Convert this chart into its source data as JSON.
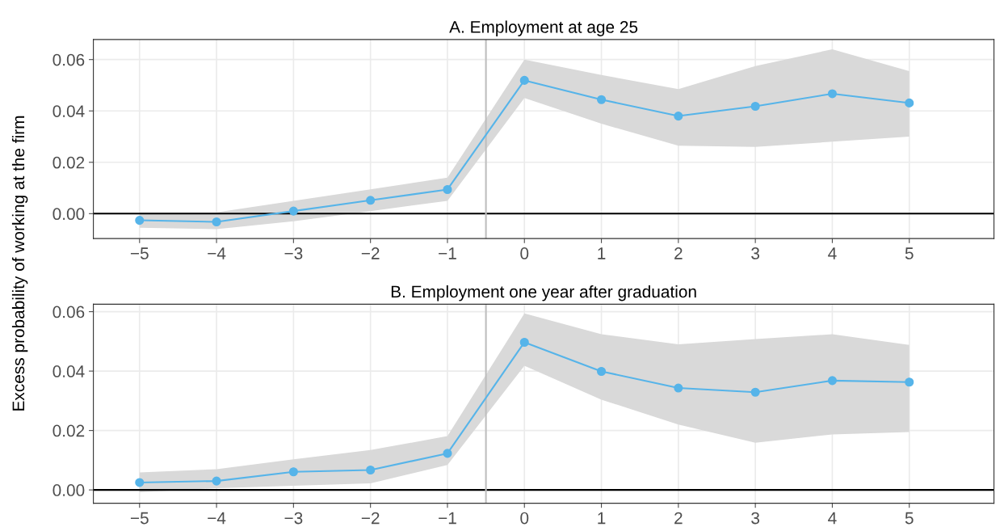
{
  "chart_data": [
    {
      "type": "line",
      "title": "A. Employment at age 25",
      "ylabel": "Excess probability of working at the firm",
      "x": [
        -5,
        -4,
        -3,
        -2,
        -1,
        0,
        1,
        2,
        3,
        4,
        5
      ],
      "series": [
        {
          "color": "#56b4e9",
          "values": [
            -0.0026,
            -0.0032,
            0.001,
            0.0052,
            0.0094,
            0.0519,
            0.0444,
            0.038,
            0.0418,
            0.0467,
            0.0431
          ],
          "lower": [
            -0.0055,
            -0.006,
            -0.003,
            0.001,
            0.005,
            0.045,
            0.035,
            0.0265,
            0.026,
            0.028,
            0.03
          ],
          "upper": [
            0.0005,
            0.0005,
            0.005,
            0.0095,
            0.014,
            0.06,
            0.054,
            0.0485,
            0.0575,
            0.064,
            0.0555
          ]
        }
      ],
      "xlim": [
        -5.6,
        6.1
      ],
      "xticks": [
        {
          "value": -5,
          "label": "−5"
        },
        {
          "value": -4,
          "label": "−4"
        },
        {
          "value": -3,
          "label": "−3"
        },
        {
          "value": -2,
          "label": "−2"
        },
        {
          "value": -1,
          "label": "−1"
        },
        0,
        1,
        2,
        3,
        4,
        5
      ],
      "ylim": [
        -0.0097,
        0.0678
      ],
      "yticks": [
        {
          "value": 0,
          "label": "0.00"
        },
        {
          "value": 0.02,
          "label": "0.02"
        },
        {
          "value": 0.04,
          "label": "0.04"
        },
        {
          "value": 0.06,
          "label": "0.06"
        }
      ],
      "ref_lines": [
        {
          "axis": "y",
          "value": 0,
          "color": "#000000"
        },
        {
          "axis": "x",
          "value": -0.5,
          "color": "#bebebe"
        }
      ],
      "grid": true,
      "legend": false,
      "marker": "circle",
      "line_style": "solid"
    },
    {
      "type": "line",
      "title": "B. Employment one year after graduation",
      "x": [
        -5,
        -4,
        -3,
        -2,
        -1,
        0,
        1,
        2,
        3,
        4,
        5
      ],
      "series": [
        {
          "color": "#56b4e9",
          "values": [
            0.0025,
            0.003,
            0.0061,
            0.0067,
            0.0123,
            0.0497,
            0.0399,
            0.0343,
            0.0329,
            0.0368,
            0.0363
          ],
          "lower": [
            -0.0008,
            0.0006,
            0.0014,
            0.0022,
            0.0084,
            0.0418,
            0.0304,
            0.022,
            0.0159,
            0.0187,
            0.0195
          ],
          "upper": [
            0.0059,
            0.007,
            0.0103,
            0.0134,
            0.0181,
            0.0594,
            0.0524,
            0.049,
            0.0508,
            0.0524,
            0.0488
          ]
        }
      ],
      "xlim": [
        -5.6,
        6.1
      ],
      "xticks": [
        {
          "value": -5,
          "label": "−5"
        },
        {
          "value": -4,
          "label": "−4"
        },
        {
          "value": -3,
          "label": "−3"
        },
        {
          "value": -2,
          "label": "−2"
        },
        {
          "value": -1,
          "label": "−1"
        },
        0,
        1,
        2,
        3,
        4,
        5
      ],
      "ylim": [
        -0.0045,
        0.0625
      ],
      "yticks": [
        {
          "value": 0,
          "label": "0.00"
        },
        {
          "value": 0.02,
          "label": "0.02"
        },
        {
          "value": 0.04,
          "label": "0.04"
        },
        {
          "value": 0.06,
          "label": "0.06"
        }
      ],
      "ref_lines": [
        {
          "axis": "y",
          "value": 0,
          "color": "#000000"
        },
        {
          "axis": "x",
          "value": -0.5,
          "color": "#bebebe"
        }
      ],
      "grid": true,
      "legend": false,
      "marker": "circle",
      "line_style": "solid"
    }
  ]
}
